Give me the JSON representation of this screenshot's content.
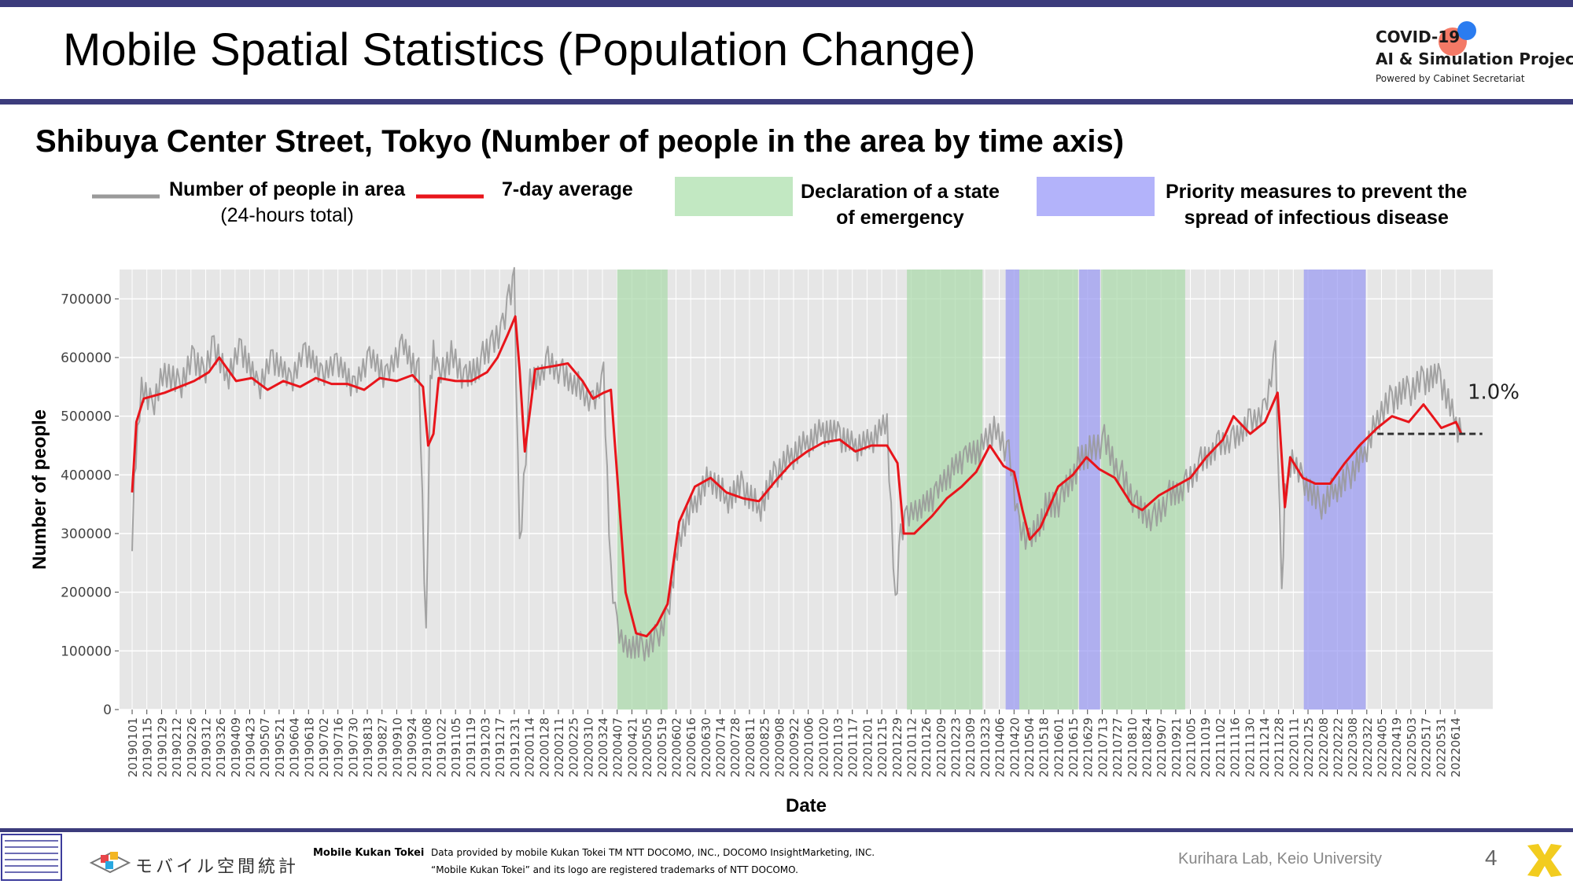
{
  "slide": {
    "title": "Mobile Spatial Statistics (Population Change)",
    "page_number": "4"
  },
  "logo": {
    "line1": "COVID-19",
    "line2": "AI & Simulation Project",
    "line3": "Powered by Cabinet Secretariat"
  },
  "legend": {
    "raw_line1": "Number of people in area",
    "raw_line2": "(24-hours total)",
    "avg": "7-day average",
    "emergency_line1": "Declaration of a state",
    "emergency_line2": "of emergency",
    "priority_line1": "Priority measures to prevent the",
    "priority_line2": "spread of infectious disease"
  },
  "footer": {
    "brand_jp": "モバイル空間統計",
    "brand_en": "Mobile Kukan Tokei",
    "credit1": "Data provided by mobile Kukan Tokei TM NTT DOCOMO, INC., DOCOMO InsightMarketing, INC.",
    "credit2": "“Mobile Kukan Tokei” and its logo are registered trademarks of NTT DOCOMO.",
    "lab": "Kurihara Lab, Keio University"
  },
  "colors": {
    "raw": "#9a9a9a",
    "avg": "#e8151b",
    "emergency": "#a8d8a8",
    "priority": "#9a9af2",
    "accent": "#3c3c7c"
  },
  "chart_data": {
    "type": "line",
    "title": "Shibuya Center Street, Tokyo (Number of people in the area by time axis)",
    "xlabel": "Date",
    "ylabel": "Number of people",
    "ylim": [
      0,
      750000
    ],
    "yticks": [
      0,
      100000,
      200000,
      300000,
      400000,
      500000,
      600000,
      700000
    ],
    "ytick_labels": [
      "0",
      "100000",
      "200000",
      "300000",
      "400000",
      "500000",
      "600000",
      "700000"
    ],
    "xlim": [
      "2018-12-20",
      "2022-07-20"
    ],
    "grid": true,
    "xtick_labels": [
      "20190101",
      "20190115",
      "20190129",
      "20190212",
      "20190226",
      "20190312",
      "20190326",
      "20190409",
      "20190423",
      "20190507",
      "20190521",
      "20190604",
      "20190618",
      "20190702",
      "20190716",
      "20190730",
      "20190813",
      "20190827",
      "20190910",
      "20190924",
      "20191008",
      "20191022",
      "20191105",
      "20191119",
      "20191203",
      "20191217",
      "20191231",
      "20200114",
      "20200128",
      "20200211",
      "20200225",
      "20200310",
      "20200324",
      "20200407",
      "20200421",
      "20200505",
      "20200519",
      "20200602",
      "20200616",
      "20200630",
      "20200714",
      "20200728",
      "20200811",
      "20200825",
      "20200908",
      "20200922",
      "20201006",
      "20201020",
      "20201103",
      "20201117",
      "20201201",
      "20201215",
      "20201229",
      "20210112",
      "20210126",
      "20210209",
      "20210223",
      "20210309",
      "20210323",
      "20210406",
      "20210420",
      "20210504",
      "20210518",
      "20210601",
      "20210615",
      "20210629",
      "20210713",
      "20210727",
      "20210810",
      "20210824",
      "20210907",
      "20210921",
      "20211005",
      "20211019",
      "20211102",
      "20211116",
      "20211130",
      "20211214",
      "20211228",
      "20220111",
      "20220125",
      "20220208",
      "20220222",
      "20220308",
      "20220322",
      "20220405",
      "20220419",
      "20220503",
      "20220517",
      "20220531",
      "20220614"
    ],
    "series": [
      {
        "name": "Number of people in area (24-hours total)",
        "kind": "raw",
        "x": [
          "2019-01-01",
          "2019-01-03",
          "2019-01-06",
          "2019-01-10",
          "2019-01-20",
          "2019-02-01",
          "2019-02-15",
          "2019-03-01",
          "2019-03-10",
          "2019-03-20",
          "2019-04-01",
          "2019-04-15",
          "2019-05-01",
          "2019-05-15",
          "2019-06-01",
          "2019-06-15",
          "2019-07-01",
          "2019-07-15",
          "2019-08-01",
          "2019-08-15",
          "2019-09-01",
          "2019-09-15",
          "2019-10-01",
          "2019-10-08",
          "2019-10-12",
          "2019-10-15",
          "2019-10-20",
          "2019-11-01",
          "2019-11-15",
          "2019-12-01",
          "2019-12-10",
          "2019-12-20",
          "2019-12-26",
          "2019-12-31",
          "2020-01-05",
          "2020-01-15",
          "2020-02-01",
          "2020-02-15",
          "2020-03-01",
          "2020-03-15",
          "2020-03-25",
          "2020-04-01",
          "2020-04-07",
          "2020-04-15",
          "2020-05-01",
          "2020-05-15",
          "2020-05-25",
          "2020-06-05",
          "2020-06-20",
          "2020-07-05",
          "2020-07-20",
          "2020-08-05",
          "2020-08-20",
          "2020-09-05",
          "2020-09-20",
          "2020-10-05",
          "2020-10-20",
          "2020-11-05",
          "2020-11-20",
          "2020-12-05",
          "2020-12-20",
          "2020-12-28",
          "2021-01-02",
          "2021-01-08",
          "2021-01-20",
          "2021-02-05",
          "2021-02-20",
          "2021-03-05",
          "2021-03-20",
          "2021-04-01",
          "2021-04-15",
          "2021-04-25",
          "2021-05-05",
          "2021-05-20",
          "2021-06-05",
          "2021-06-20",
          "2021-07-01",
          "2021-07-15",
          "2021-08-01",
          "2021-08-15",
          "2021-09-01",
          "2021-09-15",
          "2021-10-01",
          "2021-10-15",
          "2021-11-01",
          "2021-11-15",
          "2021-12-01",
          "2021-12-15",
          "2021-12-25",
          "2021-12-31",
          "2022-01-03",
          "2022-01-10",
          "2022-01-20",
          "2022-02-05",
          "2022-02-20",
          "2022-03-05",
          "2022-03-20",
          "2022-04-01",
          "2022-04-15",
          "2022-05-01",
          "2022-05-15",
          "2022-05-31",
          "2022-06-15",
          "2022-06-20"
        ],
        "values": [
          270000,
          400000,
          480000,
          560000,
          520000,
          580000,
          550000,
          600000,
          570000,
          620000,
          560000,
          610000,
          540000,
          590000,
          550000,
          600000,
          560000,
          580000,
          540000,
          590000,
          560000,
          610000,
          570000,
          110000,
          540000,
          600000,
          560000,
          600000,
          560000,
          600000,
          620000,
          650000,
          700000,
          730000,
          270000,
          560000,
          600000,
          580000,
          560000,
          530000,
          580000,
          240000,
          150000,
          120000,
          110000,
          130000,
          170000,
          300000,
          360000,
          400000,
          360000,
          380000,
          340000,
          400000,
          430000,
          450000,
          470000,
          460000,
          440000,
          450000,
          480000,
          170000,
          290000,
          320000,
          330000,
          360000,
          400000,
          420000,
          440000,
          470000,
          430000,
          300000,
          280000,
          340000,
          360000,
          420000,
          440000,
          460000,
          400000,
          350000,
          330000,
          370000,
          390000,
          430000,
          460000,
          470000,
          500000,
          520000,
          620000,
          200000,
          380000,
          440000,
          400000,
          350000,
          380000,
          400000,
          440000,
          500000,
          530000,
          540000,
          560000,
          560000,
          480000,
          470000
        ],
        "style": "jagged"
      },
      {
        "name": "7-day average",
        "kind": "avg",
        "x": [
          "2019-01-01",
          "2019-01-05",
          "2019-01-12",
          "2019-02-01",
          "2019-02-15",
          "2019-03-01",
          "2019-03-15",
          "2019-03-25",
          "2019-04-10",
          "2019-04-25",
          "2019-05-10",
          "2019-05-25",
          "2019-06-10",
          "2019-06-25",
          "2019-07-10",
          "2019-07-25",
          "2019-08-10",
          "2019-08-25",
          "2019-09-10",
          "2019-09-25",
          "2019-10-05",
          "2019-10-10",
          "2019-10-15",
          "2019-10-20",
          "2019-11-05",
          "2019-11-20",
          "2019-12-05",
          "2019-12-15",
          "2019-12-25",
          "2020-01-01",
          "2020-01-05",
          "2020-01-10",
          "2020-01-20",
          "2020-02-05",
          "2020-02-20",
          "2020-03-05",
          "2020-03-15",
          "2020-03-25",
          "2020-04-01",
          "2020-04-07",
          "2020-04-15",
          "2020-04-25",
          "2020-05-05",
          "2020-05-15",
          "2020-05-25",
          "2020-06-05",
          "2020-06-20",
          "2020-07-05",
          "2020-07-20",
          "2020-08-05",
          "2020-08-20",
          "2020-09-05",
          "2020-09-20",
          "2020-10-05",
          "2020-10-20",
          "2020-11-05",
          "2020-11-20",
          "2020-12-05",
          "2020-12-20",
          "2020-12-30",
          "2021-01-05",
          "2021-01-15",
          "2021-02-01",
          "2021-02-15",
          "2021-03-01",
          "2021-03-15",
          "2021-03-28",
          "2021-04-10",
          "2021-04-20",
          "2021-04-28",
          "2021-05-05",
          "2021-05-15",
          "2021-06-01",
          "2021-06-15",
          "2021-06-28",
          "2021-07-10",
          "2021-07-25",
          "2021-08-10",
          "2021-08-20",
          "2021-09-05",
          "2021-09-20",
          "2021-10-05",
          "2021-10-20",
          "2021-11-05",
          "2021-11-15",
          "2021-12-01",
          "2021-12-15",
          "2021-12-27",
          "2022-01-03",
          "2022-01-08",
          "2022-01-20",
          "2022-02-01",
          "2022-02-15",
          "2022-03-01",
          "2022-03-15",
          "2022-04-01",
          "2022-04-15",
          "2022-05-01",
          "2022-05-15",
          "2022-06-01",
          "2022-06-15",
          "2022-06-20"
        ],
        "values": [
          370000,
          490000,
          530000,
          540000,
          550000,
          560000,
          575000,
          600000,
          560000,
          565000,
          545000,
          560000,
          550000,
          565000,
          555000,
          555000,
          545000,
          565000,
          560000,
          570000,
          550000,
          450000,
          470000,
          565000,
          560000,
          560000,
          575000,
          600000,
          640000,
          670000,
          580000,
          440000,
          580000,
          585000,
          590000,
          560000,
          530000,
          540000,
          545000,
          400000,
          200000,
          130000,
          125000,
          145000,
          180000,
          320000,
          380000,
          395000,
          370000,
          360000,
          355000,
          390000,
          420000,
          440000,
          455000,
          460000,
          440000,
          450000,
          450000,
          420000,
          300000,
          300000,
          330000,
          360000,
          380000,
          405000,
          450000,
          415000,
          405000,
          340000,
          290000,
          310000,
          380000,
          400000,
          430000,
          410000,
          395000,
          350000,
          340000,
          365000,
          380000,
          395000,
          430000,
          460000,
          500000,
          470000,
          490000,
          540000,
          345000,
          430000,
          395000,
          385000,
          385000,
          420000,
          450000,
          480000,
          500000,
          490000,
          520000,
          480000,
          490000,
          470000
        ]
      },
      {
        "name": "trend",
        "kind": "dashed",
        "x": [
          "2022-04-01",
          "2022-07-10"
        ],
        "values": [
          470000,
          470000
        ]
      }
    ],
    "bands": [
      {
        "kind": "emergency",
        "start": "2020-04-07",
        "end": "2020-05-25"
      },
      {
        "kind": "emergency",
        "start": "2021-01-08",
        "end": "2021-03-21"
      },
      {
        "kind": "priority",
        "start": "2021-04-12",
        "end": "2021-04-25"
      },
      {
        "kind": "emergency",
        "start": "2021-04-25",
        "end": "2021-06-20"
      },
      {
        "kind": "priority",
        "start": "2021-06-21",
        "end": "2021-07-11"
      },
      {
        "kind": "emergency",
        "start": "2021-07-12",
        "end": "2021-09-30"
      },
      {
        "kind": "priority",
        "start": "2022-01-21",
        "end": "2022-03-21"
      }
    ],
    "annotations": [
      {
        "text": "1.0%",
        "x": "2022-06-20",
        "y": 530000
      }
    ]
  }
}
